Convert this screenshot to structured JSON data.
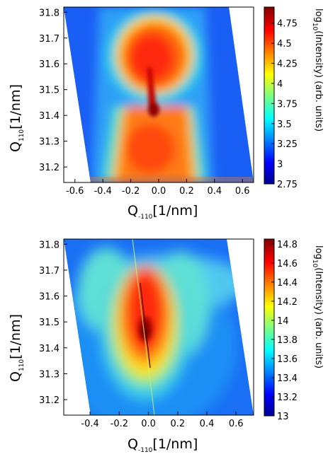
{
  "chart_data": [
    {
      "type": "heatmap",
      "xlabel": {
        "main": "Q",
        "sub": "-110",
        "unit": "[1/nm]"
      },
      "ylabel": {
        "main": "Q",
        "sub": "110",
        "unit": "[1/nm]"
      },
      "xlim": [
        -0.68,
        0.68
      ],
      "ylim": [
        31.14,
        31.82
      ],
      "x_ticks": [
        "-0.6",
        "-0.4",
        "-0.2",
        "0.0",
        "0.2",
        "0.4",
        "0.6"
      ],
      "x_tick_values": [
        -0.6,
        -0.4,
        -0.2,
        0.0,
        0.2,
        0.4,
        0.6
      ],
      "y_ticks": [
        "31.2",
        "31.3",
        "31.4",
        "31.5",
        "31.6",
        "31.7",
        "31.8"
      ],
      "y_tick_values": [
        31.2,
        31.3,
        31.4,
        31.5,
        31.6,
        31.7,
        31.8
      ],
      "colorbar": {
        "label": {
          "pre": "log",
          "sub": "10",
          "post": "(Intensity) (arb. units)"
        },
        "range": [
          2.75,
          4.95
        ],
        "ticks": [
          "2.75",
          "3",
          "3.25",
          "3.5",
          "3.75",
          "4",
          "4.25",
          "4.5",
          "4.75"
        ],
        "tick_values": [
          2.75,
          3.0,
          3.25,
          3.5,
          3.75,
          4.0,
          4.25,
          4.5,
          4.75
        ],
        "colormap": "jet"
      },
      "peak": {
        "x": 0.0,
        "y": 31.42
      }
    },
    {
      "type": "heatmap",
      "xlabel": {
        "main": "Q",
        "sub": "-110",
        "unit": "[1/nm]"
      },
      "ylabel": {
        "main": "Q",
        "sub": "110",
        "unit": "[1/nm]"
      },
      "xlim": [
        -0.58,
        0.72
      ],
      "ylim": [
        31.14,
        31.82
      ],
      "x_ticks": [
        "-0.4",
        "-0.2",
        "0.0",
        "0.2",
        "0.4",
        "0.6"
      ],
      "x_tick_values": [
        -0.4,
        -0.2,
        0.0,
        0.2,
        0.4,
        0.6
      ],
      "y_ticks": [
        "31.2",
        "31.3",
        "31.4",
        "31.5",
        "31.6",
        "31.7",
        "31.8"
      ],
      "y_tick_values": [
        31.2,
        31.3,
        31.4,
        31.5,
        31.6,
        31.7,
        31.8
      ],
      "colorbar": {
        "label": {
          "pre": "log",
          "sub": "10",
          "post": "(Intensity) (arb. units)"
        },
        "range": [
          13.0,
          14.85
        ],
        "ticks": [
          "13",
          "13.2",
          "13.4",
          "13.6",
          "13.8",
          "14",
          "14.2",
          "14.4",
          "14.6",
          "14.8"
        ],
        "tick_values": [
          13.0,
          13.2,
          13.4,
          13.6,
          13.8,
          14.0,
          14.2,
          14.4,
          14.6,
          14.8
        ],
        "colormap": "jet"
      },
      "peak": {
        "x": 0.0,
        "y": 31.45
      }
    }
  ]
}
